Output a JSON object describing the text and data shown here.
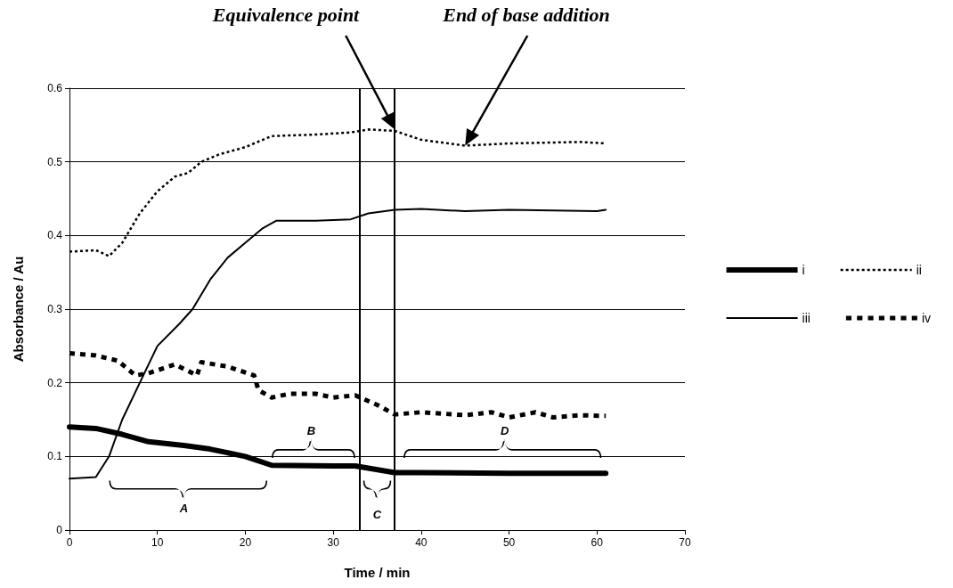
{
  "chart_data": {
    "type": "line",
    "xlabel": "Time / min",
    "ylabel": "Absorbance / Au",
    "xlim": [
      0,
      70
    ],
    "xticks": [
      0,
      10,
      20,
      30,
      40,
      50,
      60,
      70
    ],
    "ylim": [
      0,
      0.6
    ],
    "yticks": [
      0,
      0.1,
      0.2,
      0.3,
      0.4,
      0.5,
      0.6
    ],
    "grid": "y",
    "legend": "right",
    "marker": "none",
    "series": [
      {
        "name": "i",
        "color": "#000000",
        "line_style": "solid",
        "x": [
          0,
          3,
          6,
          9,
          13,
          16,
          20,
          23,
          30,
          32.5,
          37,
          40,
          50,
          61
        ],
        "values": [
          0.14,
          0.138,
          0.13,
          0.12,
          0.115,
          0.11,
          0.1,
          0.088,
          0.087,
          0.087,
          0.078,
          0.078,
          0.077,
          0.077
        ]
      },
      {
        "name": "ii",
        "color": "#000000",
        "line_style": "dotted",
        "x": [
          0,
          3,
          4.5,
          6,
          8,
          10,
          12,
          13.5,
          15,
          17,
          20,
          23,
          28,
          32,
          34,
          37,
          40,
          45,
          50,
          58,
          61
        ],
        "values": [
          0.378,
          0.38,
          0.372,
          0.39,
          0.43,
          0.46,
          0.48,
          0.485,
          0.5,
          0.51,
          0.52,
          0.535,
          0.537,
          0.54,
          0.544,
          0.542,
          0.53,
          0.522,
          0.525,
          0.527,
          0.525
        ]
      },
      {
        "name": "iii",
        "color": "#000000",
        "line_style": "solid",
        "x": [
          0,
          3,
          4.5,
          6,
          8,
          10,
          12.5,
          14,
          16,
          18,
          20,
          22,
          23.5,
          28,
          32,
          34,
          37,
          40,
          45,
          50,
          55,
          60,
          61
        ],
        "values": [
          0.07,
          0.072,
          0.1,
          0.15,
          0.2,
          0.25,
          0.28,
          0.3,
          0.34,
          0.37,
          0.39,
          0.41,
          0.42,
          0.42,
          0.422,
          0.43,
          0.435,
          0.436,
          0.433,
          0.435,
          0.434,
          0.433,
          0.435
        ]
      },
      {
        "name": "iv",
        "color": "#000000",
        "line_style": "dashed",
        "x": [
          0,
          3,
          5.5,
          7.5,
          9,
          12,
          14.5,
          15,
          18,
          21,
          21.5,
          23,
          25,
          28,
          30,
          32.5,
          35,
          37,
          40,
          45,
          48,
          50,
          53,
          55,
          58,
          61
        ],
        "values": [
          0.24,
          0.237,
          0.23,
          0.21,
          0.213,
          0.225,
          0.21,
          0.228,
          0.222,
          0.21,
          0.19,
          0.18,
          0.185,
          0.185,
          0.18,
          0.183,
          0.17,
          0.157,
          0.16,
          0.156,
          0.16,
          0.153,
          0.16,
          0.153,
          0.156,
          0.155
        ]
      }
    ],
    "ref_lines": [
      {
        "axis": "x",
        "value": 33
      },
      {
        "axis": "x",
        "value": 37
      }
    ],
    "annotations": [
      "Equivalence point",
      "End of base addition",
      "A",
      "B",
      "C",
      "D"
    ]
  }
}
